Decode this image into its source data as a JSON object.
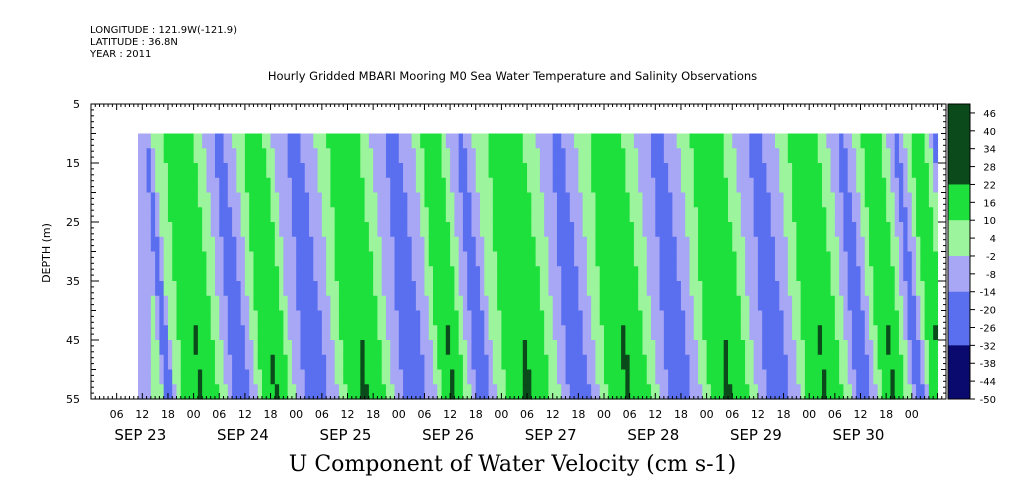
{
  "header": {
    "longitude": "LONGITUDE : 121.9W(-121.9)",
    "latitude": "LATITUDE : 36.8N",
    "year": "YEAR : 2011"
  },
  "chart_data": {
    "type": "heatmap",
    "title": "Hourly Gridded MBARI Mooring M0 Sea Water Temperature and Salinity Observations",
    "ylabel": "DEPTH (m)",
    "xlabel": "",
    "bottom_label": "U Component of Water Velocity (cm s-1)",
    "ylim": [
      5,
      55
    ],
    "y_inverted": true,
    "y_ticks": [
      5,
      15,
      25,
      35,
      45,
      55
    ],
    "x_range_hours": [
      0,
      200
    ],
    "hour_ticks": [
      "06",
      "12",
      "18",
      "00",
      "06",
      "12",
      "18",
      "00",
      "06",
      "12",
      "18",
      "00",
      "06",
      "12",
      "18",
      "00",
      "06",
      "12",
      "18",
      "00",
      "06",
      "12",
      "18",
      "00",
      "06",
      "12",
      "18",
      "00",
      "06",
      "12",
      "18",
      "00"
    ],
    "date_labels": [
      "SEP 23",
      "SEP 24",
      "SEP 25",
      "SEP 26",
      "SEP 27",
      "SEP 28",
      "SEP 29",
      "SEP 30"
    ],
    "data_start_hour": 11,
    "data_end_hour": 198,
    "data_top_depth": 10,
    "approx_sign_bands": [
      {
        "from": 11,
        "to": 14,
        "sign": "negative"
      },
      {
        "from": 14,
        "to": 26,
        "sign": "positive"
      },
      {
        "from": 26,
        "to": 33,
        "sign": "negative"
      },
      {
        "from": 33,
        "to": 42,
        "sign": "positive"
      },
      {
        "from": 42,
        "to": 52,
        "sign": "negative"
      },
      {
        "from": 52,
        "to": 65,
        "sign": "positive"
      },
      {
        "from": 65,
        "to": 75,
        "sign": "negative"
      },
      {
        "from": 75,
        "to": 83,
        "sign": "positive"
      },
      {
        "from": 83,
        "to": 89,
        "sign": "negative"
      },
      {
        "from": 89,
        "to": 104,
        "sign": "positive"
      },
      {
        "from": 104,
        "to": 113,
        "sign": "negative"
      },
      {
        "from": 113,
        "to": 127,
        "sign": "positive"
      },
      {
        "from": 127,
        "to": 137,
        "sign": "negative"
      },
      {
        "from": 137,
        "to": 150,
        "sign": "positive"
      },
      {
        "from": 150,
        "to": 160,
        "sign": "negative"
      },
      {
        "from": 160,
        "to": 172,
        "sign": "positive"
      },
      {
        "from": 172,
        "to": 178,
        "sign": "negative"
      },
      {
        "from": 178,
        "to": 186,
        "sign": "positive"
      },
      {
        "from": 186,
        "to": 190,
        "sign": "negative"
      },
      {
        "from": 190,
        "to": 196,
        "sign": "positive"
      },
      {
        "from": 196,
        "to": 198,
        "sign": "negative"
      }
    ],
    "colorbar": {
      "labels": [
        46,
        40,
        34,
        28,
        22,
        16,
        10,
        4,
        -2,
        -8,
        -14,
        -20,
        -26,
        -32,
        -38,
        -44,
        -50
      ],
      "min": -50,
      "max": 49
    },
    "colors": {
      "strong_positive": "#0b4a1a",
      "positive": "#1ee03c",
      "weak_positive": "#9cf59c",
      "weak_negative": "#a7a7f5",
      "negative": "#5a6ef0",
      "strong_negative": "#0a0a6e"
    }
  }
}
